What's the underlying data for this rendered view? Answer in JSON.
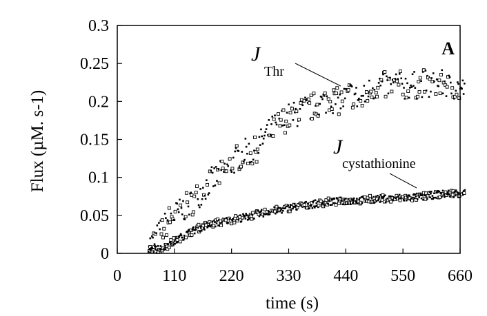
{
  "chart_data": {
    "type": "scatter",
    "title": "",
    "xlabel": "time (s)",
    "ylabel": "Flux (µM. s-1)",
    "xlim": [
      0,
      660
    ],
    "ylim": [
      0,
      0.3
    ],
    "xticks": [
      "0",
      "110",
      "220",
      "330",
      "440",
      "550",
      "660"
    ],
    "yticks": [
      "0",
      "0.05",
      "0.1",
      "0.15",
      "0.2",
      "0.25",
      "0.3"
    ],
    "panel_label": "A",
    "annotations": [
      {
        "main": "J",
        "sub": "Thr"
      },
      {
        "main": "J",
        "sub": "cystathionine"
      }
    ],
    "series": [
      {
        "name": "J Thr",
        "marker": "small square / dot, scattered",
        "x": [
          60,
          70,
          80,
          90,
          100,
          110,
          120,
          130,
          140,
          150,
          160,
          170,
          180,
          190,
          200,
          210,
          220,
          230,
          240,
          250,
          260,
          270,
          280,
          290,
          300,
          310,
          320,
          330,
          340,
          350,
          360,
          370,
          380,
          390,
          400,
          410,
          420,
          430,
          440,
          450,
          460,
          470,
          480,
          490,
          500,
          510,
          520,
          530,
          540,
          550,
          560,
          570,
          580,
          590,
          600,
          610,
          620,
          630,
          640,
          650,
          660
        ],
        "y": [
          0.01,
          0.015,
          0.025,
          0.035,
          0.045,
          0.05,
          0.055,
          0.06,
          0.065,
          0.072,
          0.08,
          0.088,
          0.095,
          0.1,
          0.105,
          0.11,
          0.118,
          0.125,
          0.13,
          0.135,
          0.13,
          0.14,
          0.15,
          0.158,
          0.165,
          0.17,
          0.175,
          0.18,
          0.182,
          0.185,
          0.19,
          0.19,
          0.195,
          0.198,
          0.2,
          0.205,
          0.2,
          0.2,
          0.205,
          0.21,
          0.205,
          0.2,
          0.21,
          0.218,
          0.22,
          0.222,
          0.22,
          0.22,
          0.225,
          0.22,
          0.22,
          0.222,
          0.22,
          0.225,
          0.22,
          0.222,
          0.222,
          0.225,
          0.218,
          0.22,
          0.215
        ]
      },
      {
        "name": "J cystathionine",
        "marker": "dense squares / dots",
        "x": [
          60,
          70,
          80,
          90,
          100,
          110,
          120,
          130,
          140,
          150,
          160,
          170,
          180,
          190,
          200,
          210,
          220,
          230,
          240,
          250,
          260,
          270,
          280,
          290,
          300,
          310,
          320,
          330,
          340,
          350,
          360,
          370,
          380,
          390,
          400,
          410,
          420,
          430,
          440,
          450,
          460,
          470,
          480,
          490,
          500,
          510,
          520,
          530,
          540,
          550,
          560,
          570,
          580,
          590,
          600,
          610,
          620,
          630,
          640,
          650,
          660
        ],
        "y": [
          0.005,
          0.004,
          0.006,
          0.008,
          0.012,
          0.016,
          0.02,
          0.024,
          0.028,
          0.031,
          0.034,
          0.036,
          0.038,
          0.04,
          0.041,
          0.043,
          0.044,
          0.045,
          0.047,
          0.048,
          0.05,
          0.051,
          0.053,
          0.055,
          0.056,
          0.057,
          0.058,
          0.06,
          0.061,
          0.062,
          0.063,
          0.064,
          0.065,
          0.066,
          0.067,
          0.068,
          0.068,
          0.069,
          0.069,
          0.07,
          0.07,
          0.07,
          0.071,
          0.071,
          0.072,
          0.072,
          0.072,
          0.072,
          0.073,
          0.073,
          0.073,
          0.074,
          0.074,
          0.075,
          0.076,
          0.077,
          0.078,
          0.078,
          0.079,
          0.079,
          0.08
        ]
      }
    ]
  }
}
